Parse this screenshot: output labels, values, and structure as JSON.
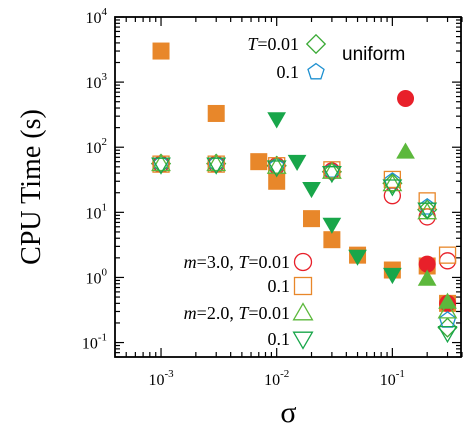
{
  "chart_data": {
    "type": "scatter",
    "title": "",
    "xlabel": "σ",
    "ylabel": "CPU Time (s)",
    "xscale": "log",
    "yscale": "log",
    "xlim": [
      0.0004,
      0.4
    ],
    "ylim": [
      0.06,
      10000
    ],
    "x_ticks": [
      {
        "value": 0.001,
        "base": "10",
        "exp": "-3"
      },
      {
        "value": 0.01,
        "base": "10",
        "exp": "-2"
      },
      {
        "value": 0.1,
        "base": "10",
        "exp": "-1"
      }
    ],
    "y_ticks": [
      {
        "value": 0.1,
        "base": "10",
        "exp": "-1"
      },
      {
        "value": 1,
        "base": "10",
        "exp": "0"
      },
      {
        "value": 10,
        "base": "10",
        "exp": "1"
      },
      {
        "value": 100,
        "base": "10",
        "exp": "2"
      },
      {
        "value": 1000,
        "base": "10",
        "exp": "3"
      },
      {
        "value": 10000,
        "base": "10",
        "exp": "4"
      }
    ],
    "annotation": "uniform",
    "legend_top": [
      {
        "prefix": "T",
        "text": "=0.01",
        "marker": "diamond",
        "color": "#3aaa35",
        "filled": false
      },
      {
        "prefix": "",
        "text": "0.1",
        "marker": "pentagon",
        "color": "#1e90d0",
        "filled": false
      }
    ],
    "legend_bottom": [
      {
        "prefix": "m",
        "text": "=3.0, ",
        "prefix2": "T",
        "text2": "=0.01",
        "marker": "circle",
        "color": "#e8202a",
        "filled": false
      },
      {
        "prefix": "",
        "text": "0.1",
        "prefix2": "",
        "text2": "",
        "marker": "square",
        "color": "#e8872a",
        "filled": false
      },
      {
        "prefix": "m",
        "text": "=2.0, ",
        "prefix2": "T",
        "text2": "=0.01",
        "marker": "triangle-up",
        "color": "#5cb83c",
        "filled": false
      },
      {
        "prefix": "",
        "text": "0.1",
        "prefix2": "",
        "text2": "",
        "marker": "triangle-down",
        "color": "#18a64a",
        "filled": false
      }
    ],
    "series": [
      {
        "marker": "square",
        "color": "#e8872a",
        "filled": true,
        "x": [
          0.001,
          0.003,
          0.007,
          0.01,
          0.02,
          0.03,
          0.05,
          0.1,
          0.2,
          0.3
        ],
        "y": [
          3000,
          330,
          60,
          30,
          8,
          3.8,
          2.2,
          1.3,
          1.5,
          0.4
        ]
      },
      {
        "marker": "triangle-down",
        "color": "#18a64a",
        "filled": true,
        "x": [
          0.01,
          0.015,
          0.02,
          0.03,
          0.05,
          0.1
        ],
        "y": [
          270,
          60,
          23,
          6.5,
          2.1,
          1.1
        ]
      },
      {
        "marker": "circle",
        "color": "#e8202a",
        "filled": true,
        "x": [
          0.13,
          0.2,
          0.3
        ],
        "y": [
          560,
          1.6,
          0.4
        ]
      },
      {
        "marker": "triangle-up",
        "color": "#5cb83c",
        "filled": true,
        "x": [
          0.13,
          0.2,
          0.3
        ],
        "y": [
          85,
          0.95,
          0.42
        ]
      },
      {
        "marker": "diamond",
        "color": "#3aaa35",
        "filled": false,
        "x": [
          0.001,
          0.003,
          0.01,
          0.03,
          0.1,
          0.2,
          0.3
        ],
        "y": [
          56,
          56,
          52,
          42,
          28,
          11,
          0.17
        ]
      },
      {
        "marker": "pentagon",
        "color": "#1e90d0",
        "filled": false,
        "x": [
          0.001,
          0.003,
          0.01,
          0.03,
          0.1,
          0.2,
          0.3
        ],
        "y": [
          55,
          55,
          50,
          44,
          30,
          12,
          0.22
        ]
      },
      {
        "marker": "circle",
        "color": "#e8202a",
        "filled": false,
        "x": [
          0.001,
          0.003,
          0.01,
          0.03,
          0.1,
          0.2,
          0.3
        ],
        "y": [
          55,
          55,
          52,
          43,
          18,
          8.5,
          1.8
        ]
      },
      {
        "marker": "square",
        "color": "#e8872a",
        "filled": false,
        "x": [
          0.001,
          0.003,
          0.01,
          0.03,
          0.1,
          0.2,
          0.3
        ],
        "y": [
          55,
          55,
          52,
          45,
          32,
          15,
          2.2
        ]
      },
      {
        "marker": "triangle-up",
        "color": "#5cb83c",
        "filled": false,
        "x": [
          0.001,
          0.003,
          0.01,
          0.03,
          0.1,
          0.2,
          0.3
        ],
        "y": [
          55,
          55,
          50,
          42,
          27,
          10,
          0.3
        ]
      },
      {
        "marker": "triangle-down",
        "color": "#18a64a",
        "filled": false,
        "x": [
          0.001,
          0.003,
          0.01,
          0.03,
          0.1,
          0.2,
          0.3
        ],
        "y": [
          54,
          54,
          49,
          40,
          25,
          11,
          0.14
        ]
      }
    ]
  }
}
